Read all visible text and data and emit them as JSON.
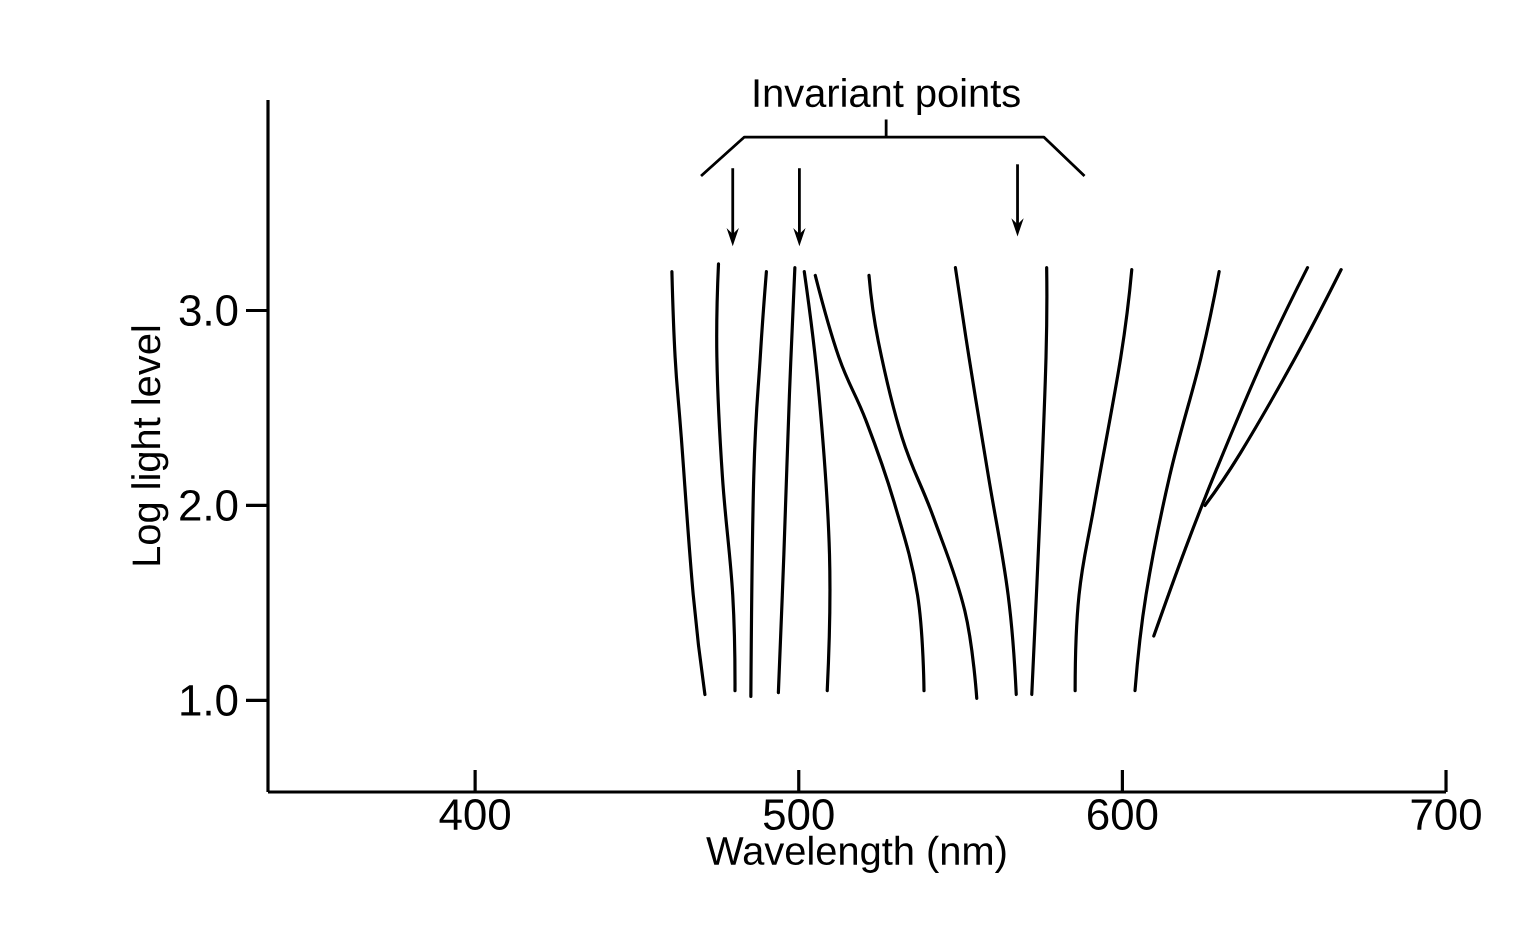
{
  "chart_data": {
    "type": "line",
    "xlabel": "Wavelength (nm)",
    "ylabel": "Log light level",
    "annotations": [
      "Invariant points"
    ],
    "xlim": [
      336,
      700
    ],
    "ylim": [
      0.53,
      4.08
    ],
    "xticks": [
      400,
      500,
      600,
      700
    ],
    "yticks": [
      {
        "value": 1,
        "label": "1.0"
      },
      {
        "value": 2,
        "label": "2.0"
      },
      {
        "value": 3,
        "label": "3.0"
      }
    ],
    "marker": "none",
    "line_style": "solid",
    "series": [
      {
        "color": "#000000",
        "x": [
          460.8,
          461.8,
          463.7,
          467.4,
          471.0
        ],
        "values": [
          3.2,
          2.76,
          2.35,
          1.54,
          1.03
        ]
      },
      {
        "color": "#000000",
        "x": [
          475.2,
          474.7,
          476.4,
          479.6,
          480.3
        ],
        "values": [
          3.24,
          2.76,
          2.15,
          1.54,
          1.05
        ]
      },
      {
        "color": "#000000",
        "x": [
          490.0,
          488.1,
          486.1,
          485.2
        ],
        "values": [
          3.2,
          2.76,
          2.15,
          1.02
        ]
      },
      {
        "color": "#000000",
        "x": [
          498.8,
          497.1,
          495.4,
          493.7
        ],
        "values": [
          3.22,
          2.56,
          1.75,
          1.04
        ]
      },
      {
        "color": "#000000",
        "x": [
          501.7,
          506.3,
          509.5,
          508.8
        ],
        "values": [
          3.2,
          2.56,
          1.75,
          1.05
        ]
      },
      {
        "color": "#000000",
        "x": [
          505.1,
          512.4,
          520.9,
          529.4,
          536.7,
          538.7
        ],
        "values": [
          3.18,
          2.76,
          2.43,
          2.02,
          1.54,
          1.05
        ]
      },
      {
        "color": "#000000",
        "x": [
          521.7,
          524.6,
          531.9,
          541.6,
          551.3,
          555.0
        ],
        "values": [
          3.18,
          2.84,
          2.35,
          1.94,
          1.46,
          1.01
        ]
      },
      {
        "color": "#000000",
        "x": [
          548.4,
          552.6,
          558.6,
          564.7,
          567.2
        ],
        "values": [
          3.22,
          2.76,
          2.15,
          1.54,
          1.03
        ]
      },
      {
        "color": "#000000",
        "x": [
          576.6,
          576.4,
          574.5,
          572.0
        ],
        "values": [
          3.22,
          2.76,
          1.94,
          1.03
        ]
      },
      {
        "color": "#000000",
        "x": [
          602.9,
          599.5,
          591.5,
          586.6,
          585.4
        ],
        "values": [
          3.21,
          2.76,
          2.02,
          1.54,
          1.05
        ]
      },
      {
        "color": "#000000",
        "x": [
          629.9,
          624.3,
          614.6,
          607.3,
          603.9
        ],
        "values": [
          3.2,
          2.76,
          2.15,
          1.54,
          1.05
        ]
      },
      {
        "color": "#000000",
        "x": [
          657.2,
          643.8,
          629.2,
          619.5,
          609.7
        ],
        "values": [
          3.22,
          2.76,
          2.19,
          1.78,
          1.33
        ]
      },
      {
        "color": "#000000",
        "x": [
          667.6,
          653.5,
          636.5,
          625.5
        ],
        "values": [
          3.21,
          2.76,
          2.27,
          2.0
        ]
      }
    ]
  }
}
